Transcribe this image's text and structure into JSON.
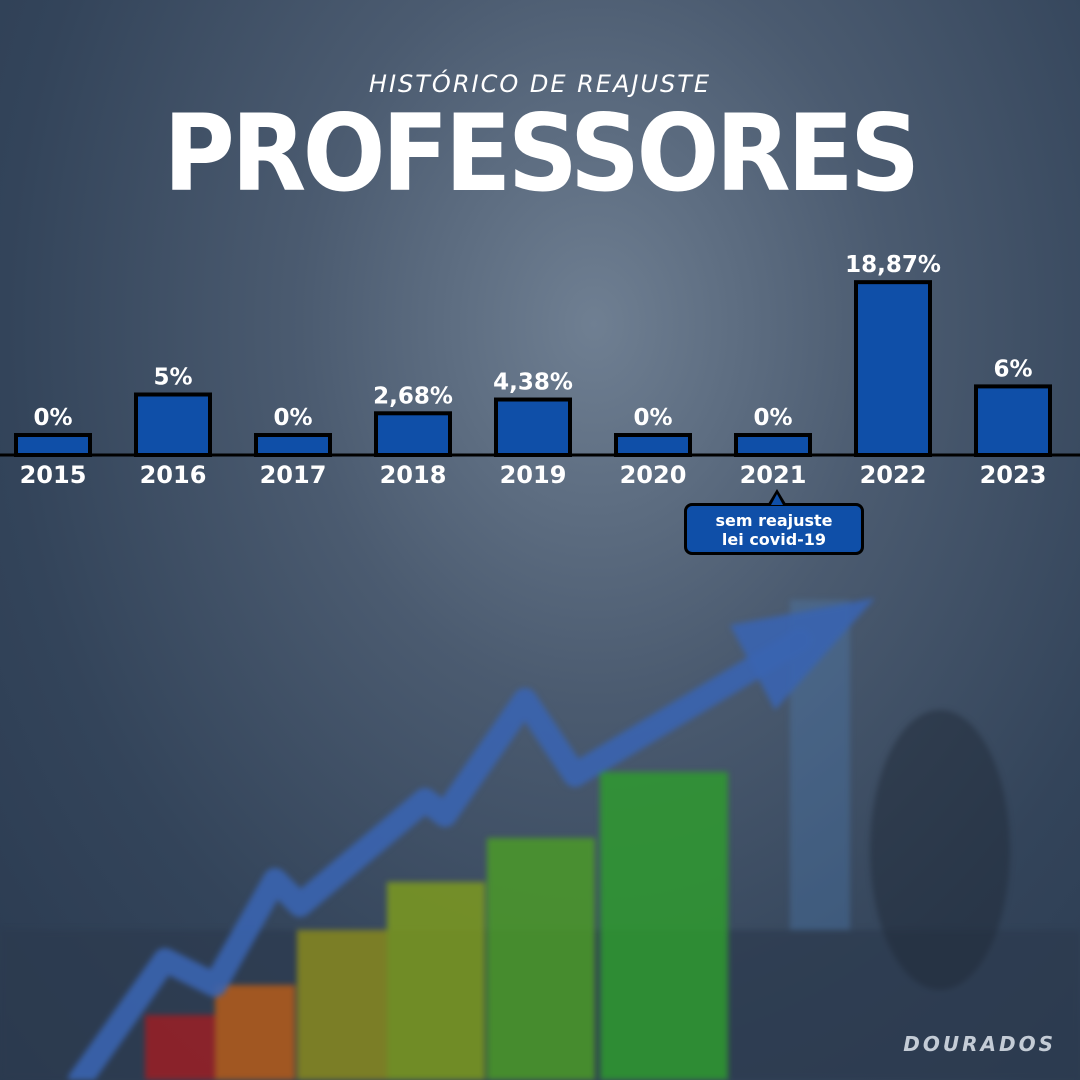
{
  "header": {
    "subtitle": "HISTÓRICO DE REAJUSTE",
    "title": "PROFESSORES"
  },
  "chart_data": {
    "type": "bar",
    "categories": [
      "2015",
      "2016",
      "2017",
      "2018",
      "2019",
      "2020",
      "2021",
      "2022",
      "2023"
    ],
    "values": [
      0,
      5,
      0,
      2.68,
      4.38,
      0,
      0,
      18.87,
      6
    ],
    "data_labels": [
      "0%",
      "5%",
      "0%",
      "2,68%",
      "4,38%",
      "0%",
      "0%",
      "18,87%",
      "6%"
    ],
    "title": "",
    "xlabel": "",
    "ylabel": "",
    "bar_color": "#0f4fa8",
    "grid": false
  },
  "annotation": {
    "line1": "sem reajuste",
    "line2": "lei covid-19"
  },
  "footer": {
    "brand": "DOURADOS"
  },
  "colors": {
    "bar": "#0f4fa8",
    "bar_outline": "#000000",
    "text": "#ffffff"
  }
}
